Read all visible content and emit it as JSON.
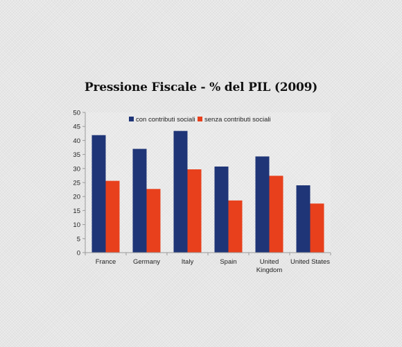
{
  "chart_data": {
    "type": "bar",
    "title": "Pressione Fiscale - % del PIL (2009)",
    "categories": [
      "France",
      "Germany",
      "Italy",
      "Spain",
      "United Kingdom",
      "United States"
    ],
    "category_lines": [
      [
        "France"
      ],
      [
        "Germany"
      ],
      [
        "Italy"
      ],
      [
        "Spain"
      ],
      [
        "United",
        "Kingdom"
      ],
      [
        "United States"
      ]
    ],
    "series": [
      {
        "name": "con contributi sociali",
        "color": "#1f3577",
        "values": [
          41.9,
          37.0,
          43.4,
          30.7,
          34.3,
          24.0
        ]
      },
      {
        "name": "senza contributi sociali",
        "color": "#e8401c",
        "values": [
          25.6,
          22.7,
          29.7,
          18.6,
          27.4,
          17.5
        ]
      }
    ],
    "ylim": [
      0,
      50
    ],
    "yticks": [
      0,
      5,
      10,
      15,
      20,
      25,
      30,
      35,
      40,
      45,
      50
    ],
    "xlabel": "",
    "ylabel": "",
    "grid": false,
    "legend_position": "top"
  }
}
